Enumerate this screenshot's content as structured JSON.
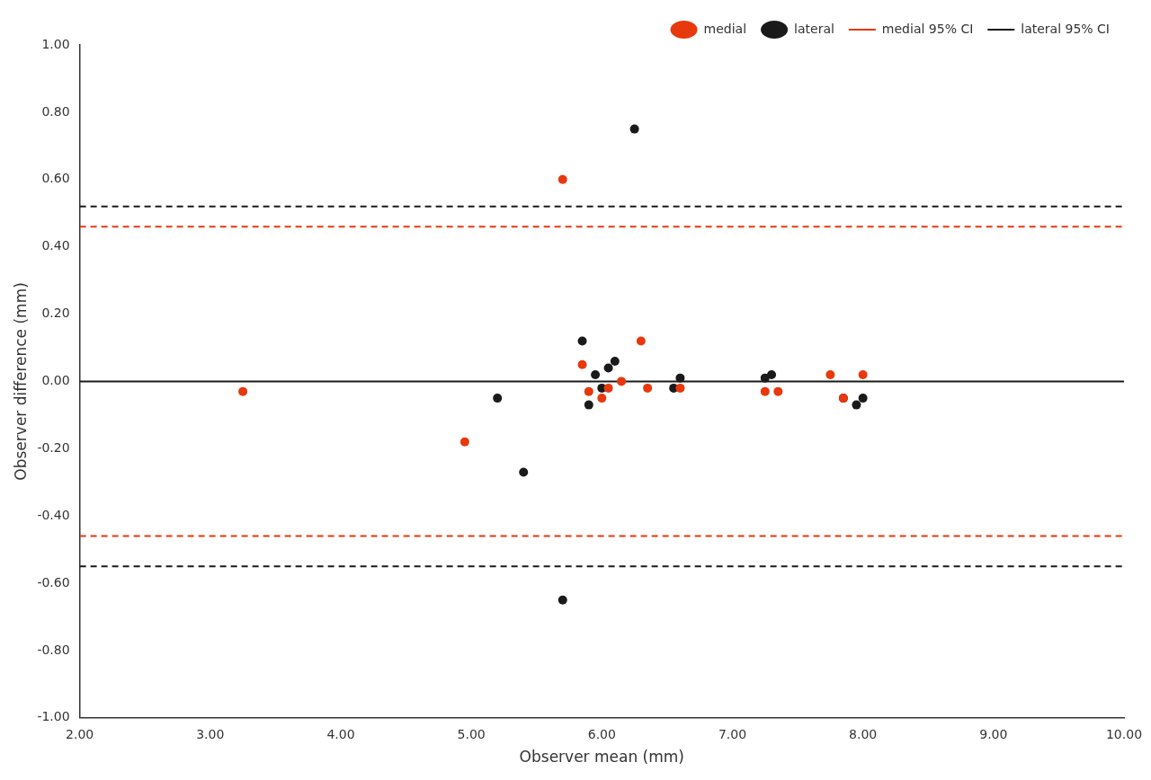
{
  "chart_data": {
    "type": "scatter",
    "xlabel": "Observer mean (mm)",
    "ylabel": "Observer difference (mm)",
    "series": [
      {
        "name": "medial",
        "color": "#E8380D",
        "marker": "circle",
        "x": [
          3.25,
          4.95,
          5.7,
          5.85,
          5.9,
          6.0,
          6.05,
          6.15,
          6.3,
          6.35,
          6.6,
          7.25,
          7.35,
          7.75,
          7.85,
          8.0
        ],
        "values": [
          -0.03,
          -0.18,
          0.6,
          0.05,
          -0.03,
          -0.05,
          -0.02,
          0.0,
          0.12,
          -0.02,
          -0.02,
          -0.03,
          -0.03,
          0.02,
          -0.05,
          0.02
        ]
      },
      {
        "name": "lateral",
        "color": "#1a1a1a",
        "marker": "circle",
        "x": [
          5.2,
          5.4,
          5.7,
          5.85,
          5.9,
          5.95,
          6.0,
          6.05,
          6.1,
          6.25,
          6.55,
          6.6,
          7.25,
          7.3,
          7.85,
          7.95,
          8.0
        ],
        "values": [
          -0.05,
          -0.27,
          -0.65,
          0.12,
          -0.07,
          0.02,
          -0.02,
          0.04,
          0.06,
          0.75,
          -0.02,
          0.01,
          0.01,
          0.02,
          -0.05,
          -0.07,
          -0.05
        ]
      }
    ],
    "reference_lines": [
      {
        "name": "medial 95% CI",
        "color": "#E8380D",
        "line_style": "dashed",
        "values": [
          0.46,
          -0.46
        ]
      },
      {
        "name": "lateral 95% CI",
        "color": "#1a1a1a",
        "line_style": "dashed",
        "values": [
          0.52,
          -0.55
        ]
      }
    ],
    "zero_line": {
      "value": 0,
      "color": "#1a1a1a"
    },
    "xlim": [
      2.0,
      10.0
    ],
    "ylim": [
      -1.0,
      1.0
    ],
    "xticks": [
      {
        "value": 2.0,
        "label": "2.00"
      },
      {
        "value": 3.0,
        "label": "3.00"
      },
      {
        "value": 4.0,
        "label": "4.00"
      },
      {
        "value": 5.0,
        "label": "5.00"
      },
      {
        "value": 6.0,
        "label": "6.00"
      },
      {
        "value": 7.0,
        "label": "7.00"
      },
      {
        "value": 8.0,
        "label": "8.00"
      },
      {
        "value": 9.0,
        "label": "9.00"
      },
      {
        "value": 10.0,
        "label": "10.00"
      }
    ],
    "yticks": [
      {
        "value": -1.0,
        "label": "-1.00"
      },
      {
        "value": -0.8,
        "label": "-0.80"
      },
      {
        "value": -0.6,
        "label": "-0.60"
      },
      {
        "value": -0.4,
        "label": "-0.40"
      },
      {
        "value": -0.2,
        "label": "-0.20"
      },
      {
        "value": 0.0,
        "label": "0.00"
      },
      {
        "value": 0.2,
        "label": "0.20"
      },
      {
        "value": 0.4,
        "label": "0.40"
      },
      {
        "value": 0.6,
        "label": "0.60"
      },
      {
        "value": 0.8,
        "label": "0.80"
      },
      {
        "value": 1.0,
        "label": "1.00"
      }
    ],
    "grid": false,
    "legend": "upper right"
  }
}
